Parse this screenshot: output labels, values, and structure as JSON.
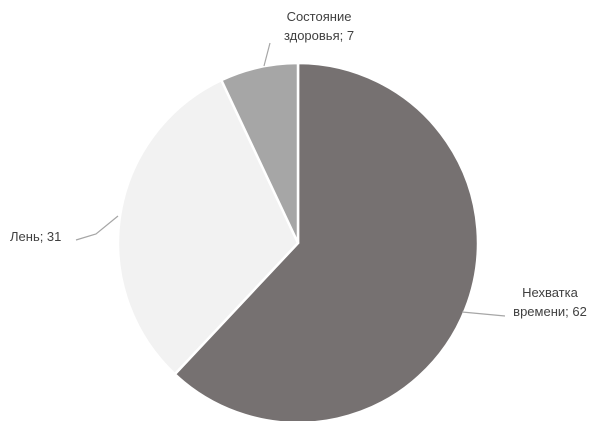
{
  "chart_data": {
    "type": "pie",
    "slices": [
      {
        "label": "Нехватка времени",
        "value": 62,
        "color": "#767171",
        "data_label_lines": [
          "Нехватка",
          "времени; 62"
        ]
      },
      {
        "label": "Лень",
        "value": 31,
        "color": "#f2f2f2",
        "data_label_lines": [
          "Лень; 31"
        ]
      },
      {
        "label": "Состояние здоровья",
        "value": 7,
        "color": "#a6a6a6",
        "data_label_lines": [
          "Состояние",
          "здоровья; 7"
        ]
      }
    ],
    "start": "12 o'clock",
    "direction": "clockwise",
    "legend": "none"
  }
}
